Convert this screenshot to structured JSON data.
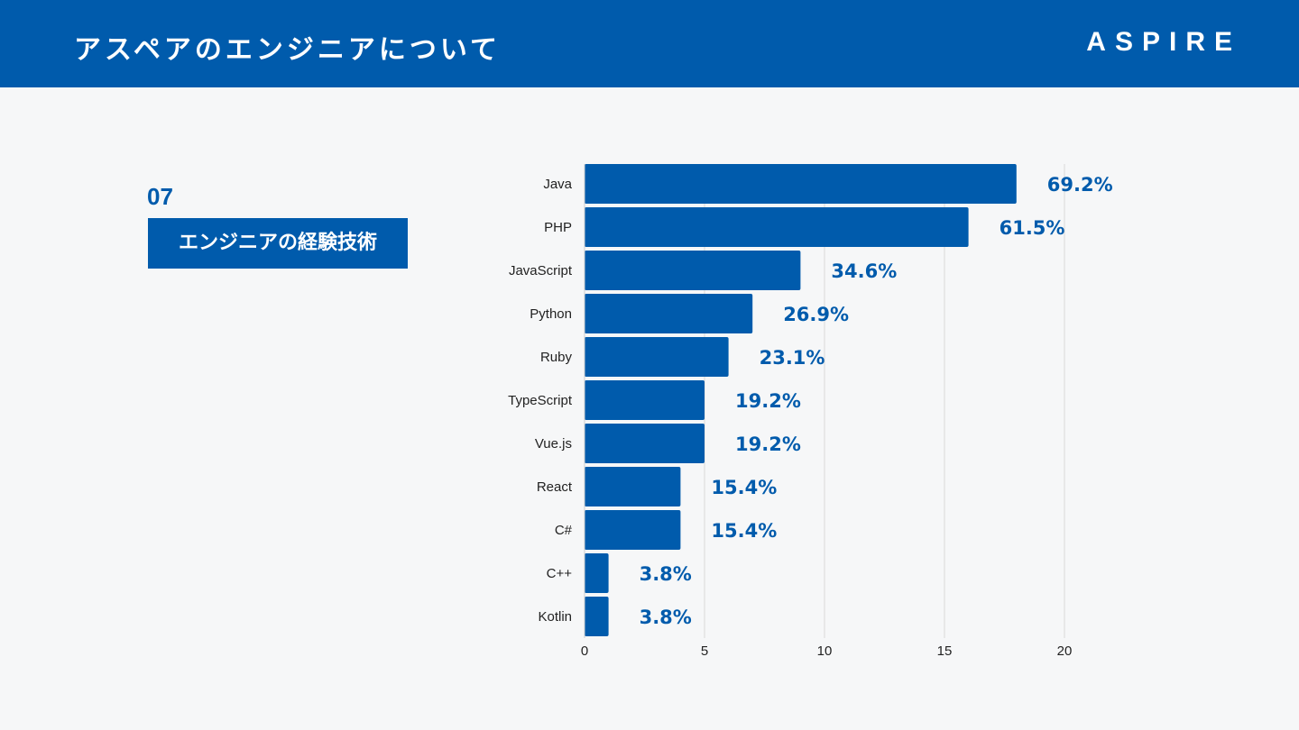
{
  "header": {
    "title": "アスペアのエンジニアについて",
    "brand": "ASPIRE"
  },
  "section": {
    "number": "07",
    "label": "エンジニアの経験技術"
  },
  "colors": {
    "primary": "#005bac",
    "background": "#f6f7f8",
    "grid": "#d9d9d9"
  },
  "chart_data": {
    "type": "bar",
    "orientation": "horizontal",
    "categories": [
      "Java",
      "PHP",
      "JavaScript",
      "Python",
      "Ruby",
      "TypeScript",
      "Vue.js",
      "React",
      "C#",
      "C++",
      "Kotlin"
    ],
    "values": [
      18,
      16,
      9,
      7,
      6,
      5,
      5,
      4,
      4,
      1,
      1
    ],
    "data_labels": [
      "69.2%",
      "61.5%",
      "34.6%",
      "26.9%",
      "23.1%",
      "19.2%",
      "19.2%",
      "15.4%",
      "15.4%",
      "3.8%",
      "3.8%"
    ],
    "xticks": [
      "0",
      "5",
      "10",
      "15",
      "20"
    ],
    "xlim": [
      0,
      20
    ],
    "grid": true,
    "legend": "none",
    "title": "",
    "xlabel": "",
    "ylabel": ""
  }
}
